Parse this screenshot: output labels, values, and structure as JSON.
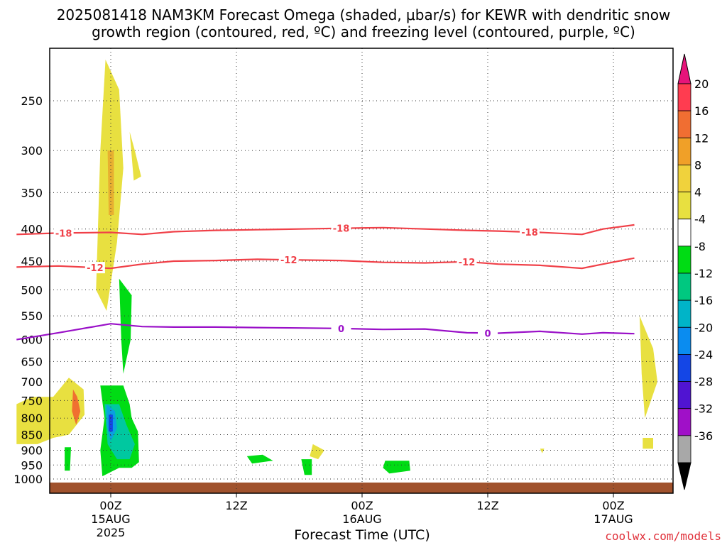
{
  "chart_data": {
    "type": "heatmap",
    "title_line1": "2025081418 NAM3KM Forecast Omega (shaded, μbar/s) for KEWR with dendritic snow",
    "title_line2": "growth region (contoured, red, ºC) and freezing level (contoured, purple, ºC)",
    "xlabel": "Forecast Time (UTC)",
    "credit": "coolwx.com/models",
    "x_range_hours": [
      -9,
      50
    ],
    "x_ticks": [
      {
        "hour": 0,
        "label": "00Z",
        "sub": "15AUG",
        "sub2": "2025"
      },
      {
        "hour": 12,
        "label": "12Z",
        "sub": "",
        "sub2": ""
      },
      {
        "hour": 24,
        "label": "00Z",
        "sub": "16AUG",
        "sub2": ""
      },
      {
        "hour": 36,
        "label": "12Z",
        "sub": "",
        "sub2": ""
      },
      {
        "hour": 48,
        "label": "00Z",
        "sub": "17AUG",
        "sub2": ""
      }
    ],
    "y_scale": "log",
    "y_range_hpa": [
      1020,
      190
    ],
    "y_ticks": [
      250,
      300,
      350,
      400,
      450,
      500,
      550,
      600,
      650,
      700,
      750,
      800,
      850,
      900,
      950,
      1000
    ],
    "grid": true,
    "colorbar": {
      "labels": [
        "20",
        "16",
        "12",
        "8",
        "4",
        "-4",
        "-8",
        "-12",
        "-16",
        "-20",
        "-24",
        "-28",
        "-32",
        "-36"
      ],
      "colors": [
        "#ff3c50",
        "#f06e32",
        "#f0a028",
        "#f0d23c",
        "#e8e040",
        "#ffffff",
        "#00dc14",
        "#00c880",
        "#00b4c8",
        "#0a8cf0",
        "#1446e6",
        "#5014d2",
        "#a010c8",
        "#a8a8a8",
        "#000000"
      ],
      "top_arrow_color": "#e6147a",
      "bottom_arrow_color": "#000000"
    },
    "isotherm_dgz_red": [
      {
        "label": "-18",
        "hpa": [
          408,
          406,
          405,
          408,
          404,
          402,
          401,
          400,
          399,
          398,
          400,
          402,
          403,
          405,
          408,
          400,
          394
        ],
        "label_hours": [
          -4.5,
          22,
          40
        ]
      },
      {
        "label": "-12",
        "hpa": [
          460,
          458,
          462,
          455,
          450,
          449,
          447,
          448,
          449,
          452,
          453,
          451,
          455,
          457,
          462,
          455,
          445
        ],
        "label_hours": [
          -1.5,
          17,
          34
        ]
      }
    ],
    "freezing_level_purple": {
      "label": "0",
      "hpa": [
        600,
        585,
        566,
        572,
        573,
        573,
        574,
        575,
        576,
        578,
        577,
        585,
        586,
        582,
        588,
        585,
        587
      ],
      "label_hours": [
        22,
        36
      ]
    },
    "curve_hours": [
      -9,
      -5,
      0,
      3,
      6,
      10,
      14,
      18,
      22,
      26,
      30,
      34,
      37,
      41,
      45,
      47,
      50
    ],
    "omega_regions": [
      {
        "name": "ascent-upper-plume",
        "value": 4,
        "color": "#e8e040",
        "hours": [
          -0.5,
          0.8,
          1.2,
          0.6,
          -0.4,
          -1.4,
          -1.0
        ],
        "hpa": [
          215,
          240,
          320,
          420,
          540,
          500,
          300
        ]
      },
      {
        "name": "ascent-core",
        "value": 8,
        "color": "#e8b030",
        "hours": [
          -0.3,
          0.3,
          0.3,
          -0.2
        ],
        "hpa": [
          300,
          300,
          380,
          380
        ]
      },
      {
        "name": "ascent-small-300",
        "value": 4,
        "color": "#e8e040",
        "hours": [
          1.8,
          2.3,
          2.9,
          2.2
        ],
        "hpa": [
          280,
          300,
          330,
          335
        ]
      },
      {
        "name": "ascent-lower-left",
        "value": 4,
        "color": "#e8e040",
        "hours": [
          -9,
          -7.5,
          -5.5,
          -4.0,
          -2.6,
          -2.5,
          -4,
          -5.5,
          -7,
          -9
        ],
        "hpa": [
          760,
          740,
          740,
          690,
          720,
          790,
          850,
          860,
          880,
          880
        ]
      },
      {
        "name": "ascent-lower-left-core",
        "value": 12,
        "color": "#f07030",
        "hours": [
          -3.6,
          -3.2,
          -2.9,
          -3.3,
          -3.7
        ],
        "hpa": [
          720,
          740,
          780,
          820,
          780
        ]
      },
      {
        "name": "descent-mid",
        "value": -8,
        "color": "#00dc14",
        "hours": [
          0.8,
          2.0,
          1.9,
          1.2,
          1.0
        ],
        "hpa": [
          480,
          510,
          600,
          680,
          600
        ]
      },
      {
        "name": "descent-low",
        "value": -8,
        "color": "#00dc14",
        "hours": [
          -1.0,
          1.2,
          1.8,
          2.0,
          2.6,
          2.7,
          2.0,
          0.8,
          -0.8,
          -1.0,
          -0.6
        ],
        "hpa": [
          710,
          710,
          760,
          800,
          840,
          940,
          960,
          960,
          990,
          900,
          800
        ]
      },
      {
        "name": "descent-low-teal",
        "value": -12,
        "color": "#00c8a0",
        "hours": [
          -0.6,
          0.8,
          1.5,
          2.3,
          1.8,
          0.6,
          -0.3
        ],
        "hpa": [
          760,
          760,
          820,
          880,
          930,
          930,
          880
        ]
      },
      {
        "name": "descent-low-blue",
        "value": -16,
        "color": "#0aa0e0",
        "hours": [
          -0.4,
          0.4,
          0.6,
          0.0,
          -0.4
        ],
        "hpa": [
          760,
          780,
          830,
          870,
          820
        ]
      },
      {
        "name": "descent-low-darkblue",
        "value": -20,
        "color": "#1446e6",
        "hours": [
          -0.2,
          0.2,
          0.2,
          -0.2
        ],
        "hpa": [
          790,
          790,
          840,
          840
        ]
      },
      {
        "name": "descent-left-small",
        "value": -8,
        "color": "#00dc14",
        "hours": [
          -4.4,
          -3.8,
          -3.9,
          -4.4
        ],
        "hpa": [
          890,
          890,
          970,
          970
        ]
      },
      {
        "name": "descent-14z",
        "value": -8,
        "color": "#00dc14",
        "hours": [
          13.0,
          14.5,
          15.5,
          13.5
        ],
        "hpa": [
          920,
          915,
          935,
          945
        ]
      },
      {
        "name": "descent-19z",
        "value": -8,
        "color": "#00dc14",
        "hours": [
          18.2,
          19.2,
          19.2,
          18.5
        ],
        "hpa": [
          930,
          930,
          985,
          985
        ]
      },
      {
        "name": "ascent-20z",
        "value": 4,
        "color": "#e8e040",
        "hours": [
          19.3,
          20.4,
          19.8,
          19.0
        ],
        "hpa": [
          880,
          900,
          930,
          920
        ]
      },
      {
        "name": "descent-03z",
        "value": -8,
        "color": "#00dc14",
        "hours": [
          26.2,
          28.5,
          28.6,
          26.6,
          26.0
        ],
        "hpa": [
          935,
          935,
          970,
          980,
          960
        ]
      },
      {
        "name": "ascent-17aug",
        "value": 4,
        "color": "#e8e040",
        "hours": [
          50.5,
          51.8,
          52.2,
          51.0,
          50.7
        ],
        "hpa": [
          550,
          620,
          700,
          800,
          680
        ]
      },
      {
        "name": "ascent-17aug-low",
        "value": 4,
        "color": "#e8e040",
        "hours": [
          50.8,
          51.8,
          51.8,
          50.8
        ],
        "hpa": [
          860,
          860,
          895,
          895
        ]
      },
      {
        "name": "ascent-tiny",
        "value": 4,
        "color": "#e8e040",
        "hours": [
          41.0,
          41.4,
          41.2
        ],
        "hpa": [
          895,
          895,
          910
        ]
      }
    ],
    "ground_color": "#a0522d"
  }
}
